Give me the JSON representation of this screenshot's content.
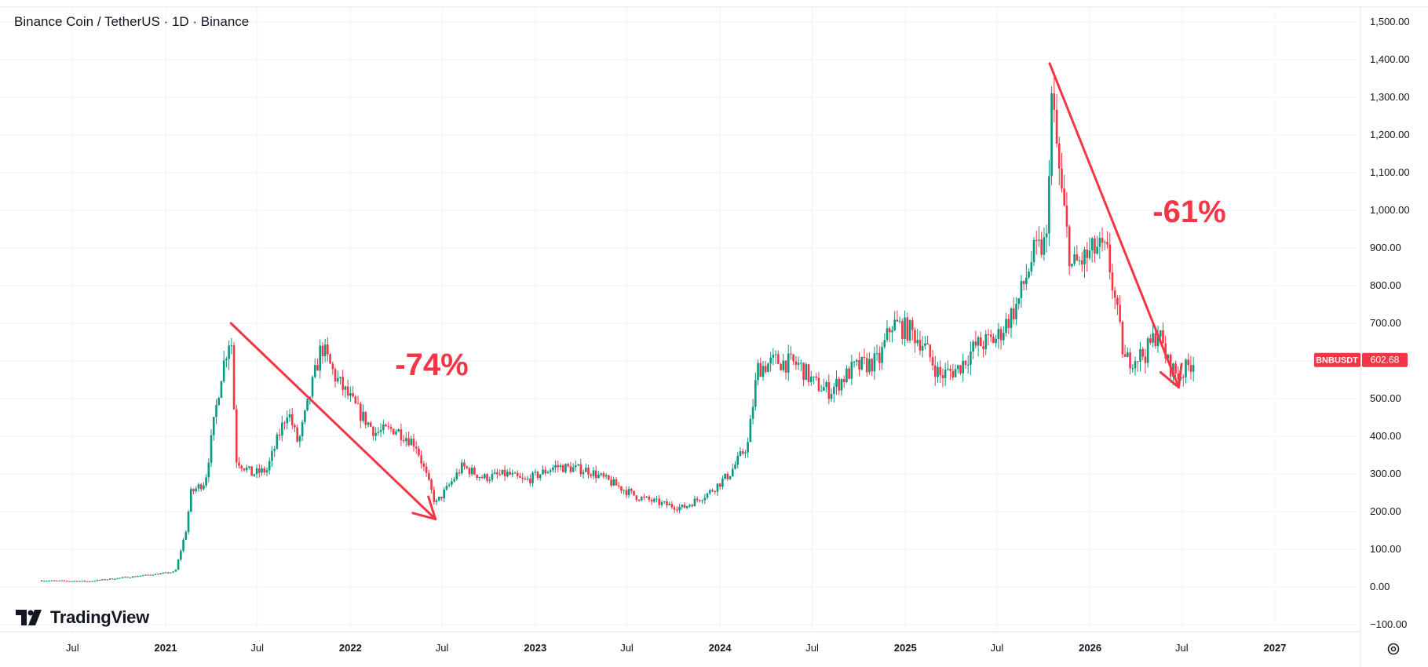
{
  "header": {
    "title": "Binance Coin / TetherUS · 1D · Binance"
  },
  "branding": {
    "logo_text": "TradingView",
    "logo_icon": "tradingview-logo-icon"
  },
  "settings_icon": "gear-icon",
  "price_badge": {
    "symbol": "BNBUSDT",
    "value": "602.68",
    "color": "#f23645"
  },
  "annotations": [
    {
      "text": "-74%",
      "color": "#f23645"
    },
    {
      "text": "-61%",
      "color": "#f23645"
    }
  ],
  "colors": {
    "up": "#089981",
    "down": "#f23645",
    "grid": "#f0f3fa",
    "annotation": "#f23645"
  },
  "chart_data": {
    "type": "line",
    "title": "Binance Coin / TetherUS · 1D · Binance",
    "series": [
      {
        "name": "BNBUSDT",
        "x": [
          "2020-05-01",
          "2020-08-01",
          "2020-11-01",
          "2021-01-20",
          "2021-02-10",
          "2021-02-20",
          "2021-03-20",
          "2021-04-20",
          "2021-05-10",
          "2021-05-20",
          "2021-06-20",
          "2021-07-20",
          "2021-08-30",
          "2021-09-20",
          "2021-11-05",
          "2021-12-01",
          "2022-01-20",
          "2022-02-20",
          "2022-03-30",
          "2022-05-10",
          "2022-06-18",
          "2022-07-10",
          "2022-08-10",
          "2022-09-20",
          "2022-11-08",
          "2022-12-10",
          "2023-02-10",
          "2023-04-15",
          "2023-06-10",
          "2023-07-20",
          "2023-09-10",
          "2023-10-20",
          "2023-12-10",
          "2024-01-20",
          "2024-02-25",
          "2024-03-15",
          "2024-04-20",
          "2024-06-05",
          "2024-07-05",
          "2024-08-05",
          "2024-09-20",
          "2024-11-10",
          "2024-12-05",
          "2025-01-10",
          "2025-02-03",
          "2025-03-10",
          "2025-04-15",
          "2025-05-20",
          "2025-07-01",
          "2025-08-10",
          "2025-09-10",
          "2025-10-13",
          "2025-10-11",
          "2025-11-05",
          "2025-11-25",
          "2025-12-20",
          "2026-01-15",
          "2026-02-05",
          "2026-03-10",
          "2026-04-20",
          "2026-05-15",
          "2026-06-05",
          "2026-06-25",
          "2026-07-10",
          "2026-07-25"
        ],
        "values": [
          17,
          15,
          28,
          40,
          150,
          250,
          280,
          560,
          680,
          340,
          300,
          310,
          470,
          380,
          640,
          560,
          460,
          410,
          420,
          380,
          220,
          260,
          320,
          290,
          300,
          280,
          320,
          310,
          270,
          240,
          220,
          210,
          250,
          300,
          380,
          580,
          600,
          590,
          540,
          520,
          580,
          600,
          700,
          680,
          650,
          560,
          580,
          640,
          660,
          750,
          880,
          1350,
          920,
          1050,
          850,
          870,
          900,
          880,
          600,
          620,
          680,
          590,
          560,
          580,
          602.68
        ]
      }
    ],
    "x_ticks": [
      "Jul",
      "2021",
      "Jul",
      "2022",
      "Jul",
      "2023",
      "Jul",
      "2024",
      "Jul",
      "2025",
      "Jul",
      "2026",
      "Jul",
      "2027"
    ],
    "y_ticks": [
      "1,500.00",
      "1,400.00",
      "1,300.00",
      "1,200.00",
      "1,100.00",
      "1,000.00",
      "900.00",
      "800.00",
      "700.00",
      "600.00",
      "500.00",
      "400.00",
      "300.00",
      "200.00",
      "100.00",
      "0.00",
      "−100.00"
    ],
    "ylim": [
      -100,
      1500
    ],
    "grid": true,
    "last_price": 602.68,
    "annotations": [
      {
        "label": "-74%",
        "from": {
          "x": "2021-05-10",
          "y": 700
        },
        "to": {
          "x": "2022-06-18",
          "y": 180
        }
      },
      {
        "label": "-61%",
        "from": {
          "x": "2025-10-13",
          "y": 1390
        },
        "to": {
          "x": "2026-06-25",
          "y": 530
        }
      }
    ]
  }
}
